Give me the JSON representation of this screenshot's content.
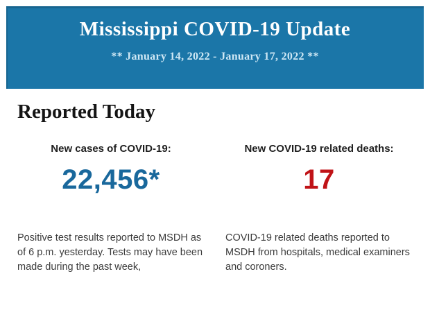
{
  "header": {
    "title": "Mississippi COVID-19 Update",
    "date_range": "** January 14, 2022 - January 17, 2022 **",
    "background_color": "#1b76a8",
    "title_color": "#ffffff",
    "date_color": "#cfe8f5"
  },
  "report": {
    "section_title": "Reported Today",
    "stats": [
      {
        "label": "New cases of COVID-19:",
        "value": "22,456*",
        "value_color": "#19689c",
        "description": "Positive test results reported to MSDH as of 6 p.m. yesterday. Tests may have been made during the past week,"
      },
      {
        "label": "New COVID-19 related deaths:",
        "value": "17",
        "value_color": "#c01317",
        "description": "COVID-19 related deaths reported to MSDH from hospitals, medical examiners and coroners."
      }
    ]
  }
}
